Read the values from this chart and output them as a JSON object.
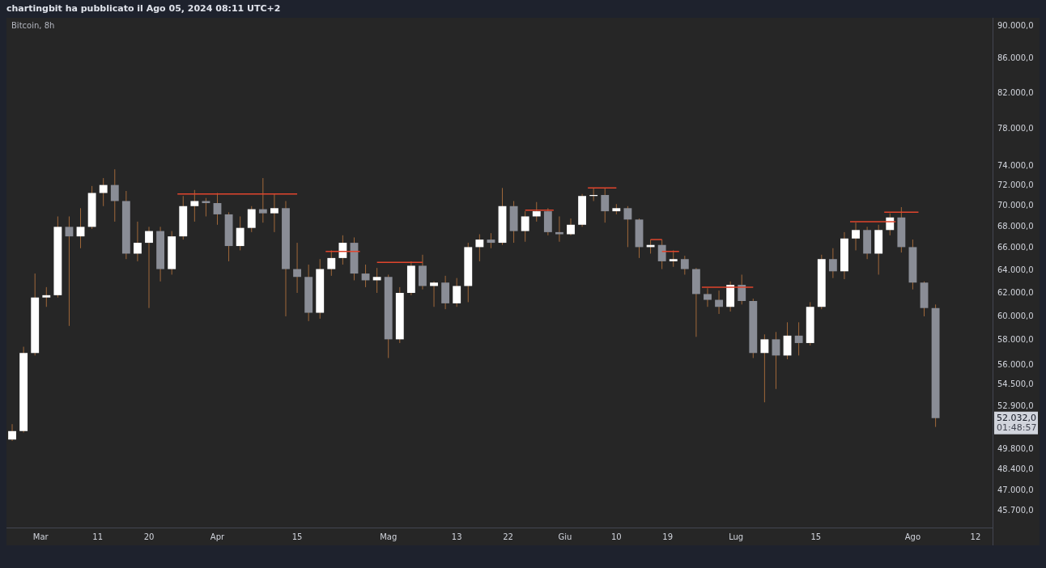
{
  "chart_data": {
    "type": "candlestick",
    "title": "chartingbit ha pubblicato il Ago 05, 2024 08:11 UTC+2",
    "subtitle": "Bitcoin, 8h",
    "series": [
      {
        "colors": [
          "#ffffff",
          "#ffffff",
          "#ffffff",
          "#ffffff",
          "#ffffff",
          "#8a8d96",
          "#ffffff",
          "#ffffff",
          "#ffffff",
          "#8a8d96",
          "#8a8d96",
          "#ffffff",
          "#ffffff",
          "#8a8d96",
          "#ffffff",
          "#ffffff",
          "#ffffff",
          "#8a8d96",
          "#8a8d96",
          "#8a8d96",
          "#ffffff",
          "#ffffff",
          "#8a8d96",
          "#ffffff",
          "#8a8d96",
          "#8a8d96",
          "#8a8d96",
          "#ffffff",
          "#ffffff",
          "#ffffff",
          "#8a8d96",
          "#8a8d96",
          "#ffffff",
          "#8a8d96",
          "#ffffff",
          "#ffffff",
          "#8a8d96",
          "#ffffff",
          "#8a8d96",
          "#ffffff",
          "#ffffff",
          "#ffffff",
          "#8a8d96",
          "#ffffff",
          "#8a8d96",
          "#ffffff",
          "#ffffff",
          "#8a8d96",
          "#8a8d96",
          "#ffffff",
          "#ffffff",
          "#ffffff",
          "#8a8d96",
          "#ffffff",
          "#8a8d96",
          "#8a8d96",
          "#ffffff",
          "#8a8d96",
          "#ffffff",
          "#8a8d96",
          "#8a8d96",
          "#8a8d96",
          "#8a8d96",
          "#ffffff",
          "#8a8d96",
          "#8a8d96",
          "#ffffff",
          "#8a8d96",
          "#ffffff",
          "#8a8d96",
          "#ffffff",
          "#ffffff",
          "#8a8d96",
          "#ffffff",
          "#ffffff",
          "#8a8d96",
          "#ffffff",
          "#ffffff",
          "#8a8d96",
          "#8a8d96",
          "#8a8d96",
          "#8a8d96"
        ],
        "x": [
          "2024-02-25",
          "2024-02-27",
          "2024-02-29",
          "2024-03-02",
          "2024-03-04",
          "2024-03-06",
          "2024-03-08",
          "2024-03-10",
          "2024-03-12",
          "2024-03-14",
          "2024-03-16",
          "2024-03-18",
          "2024-03-20",
          "2024-03-22",
          "2024-03-24",
          "2024-03-26",
          "2024-03-28",
          "2024-03-30",
          "2024-04-01",
          "2024-04-03",
          "2024-04-05",
          "2024-04-07",
          "2024-04-09",
          "2024-04-11",
          "2024-04-13",
          "2024-04-15",
          "2024-04-17",
          "2024-04-19",
          "2024-04-21",
          "2024-04-23",
          "2024-04-25",
          "2024-04-27",
          "2024-04-29",
          "2024-05-01",
          "2024-05-03",
          "2024-05-05",
          "2024-05-07",
          "2024-05-09",
          "2024-05-11",
          "2024-05-13",
          "2024-05-15",
          "2024-05-17",
          "2024-05-19",
          "2024-05-21",
          "2024-05-23",
          "2024-05-25",
          "2024-05-27",
          "2024-05-29",
          "2024-05-31",
          "2024-06-02",
          "2024-06-04",
          "2024-06-06",
          "2024-06-08",
          "2024-06-10",
          "2024-06-12",
          "2024-06-14",
          "2024-06-16",
          "2024-06-18",
          "2024-06-20",
          "2024-06-22",
          "2024-06-24",
          "2024-06-26",
          "2024-06-28",
          "2024-06-30",
          "2024-07-02",
          "2024-07-04",
          "2024-07-06",
          "2024-07-08",
          "2024-07-10",
          "2024-07-12",
          "2024-07-14",
          "2024-07-16",
          "2024-07-18",
          "2024-07-20",
          "2024-07-22",
          "2024-07-24",
          "2024-07-26",
          "2024-07-28",
          "2024-07-30",
          "2024-08-01",
          "2024-08-03",
          "2024-08-05"
        ],
        "ohlc": [
          [
            50500,
            51600,
            50400,
            51100
          ],
          [
            51100,
            57500,
            51000,
            57000
          ],
          [
            57000,
            63700,
            56800,
            61600
          ],
          [
            61600,
            62500,
            60800,
            61800
          ],
          [
            61800,
            69000,
            61600,
            68000
          ],
          [
            68000,
            69000,
            59200,
            67100
          ],
          [
            67100,
            69800,
            66000,
            68000
          ],
          [
            68000,
            72000,
            67800,
            71300
          ],
          [
            71300,
            72800,
            70000,
            72100
          ],
          [
            72100,
            73700,
            68500,
            70500
          ],
          [
            70500,
            71500,
            65000,
            65500
          ],
          [
            65500,
            68500,
            64800,
            66500
          ],
          [
            66500,
            68000,
            60700,
            67600
          ],
          [
            67600,
            68000,
            63000,
            64100
          ],
          [
            64100,
            67600,
            63600,
            67100
          ],
          [
            67100,
            71000,
            66800,
            70000
          ],
          [
            70000,
            71600,
            68500,
            70500
          ],
          [
            70500,
            70800,
            69000,
            70300
          ],
          [
            70300,
            71300,
            68200,
            69200
          ],
          [
            69200,
            69400,
            64800,
            66200
          ],
          [
            66200,
            69000,
            65800,
            67900
          ],
          [
            67900,
            70000,
            67500,
            69700
          ],
          [
            69700,
            72800,
            68400,
            69300
          ],
          [
            69300,
            71200,
            67500,
            69800
          ],
          [
            69800,
            70500,
            60000,
            64100
          ],
          [
            64100,
            66500,
            62000,
            63400
          ],
          [
            63400,
            64500,
            59600,
            60300
          ],
          [
            60300,
            65000,
            59800,
            64100
          ],
          [
            64100,
            65800,
            63500,
            65100
          ],
          [
            65100,
            67200,
            64500,
            66500
          ],
          [
            66500,
            67000,
            63100,
            63700
          ],
          [
            63700,
            64500,
            62500,
            63100
          ],
          [
            63100,
            64200,
            62000,
            63400
          ],
          [
            63400,
            63600,
            56600,
            58100
          ],
          [
            58100,
            62500,
            57800,
            62000
          ],
          [
            62000,
            64800,
            61800,
            64400
          ],
          [
            64400,
            65400,
            62300,
            62600
          ],
          [
            62600,
            63000,
            60800,
            62900
          ],
          [
            62900,
            63500,
            60600,
            61100
          ],
          [
            61100,
            63300,
            60800,
            62600
          ],
          [
            62600,
            66500,
            61200,
            66100
          ],
          [
            66100,
            67300,
            64800,
            66800
          ],
          [
            66800,
            67400,
            66000,
            66500
          ],
          [
            66500,
            71800,
            66300,
            70000
          ],
          [
            70000,
            70500,
            66500,
            67600
          ],
          [
            67600,
            69500,
            66600,
            69000
          ],
          [
            69000,
            70400,
            68500,
            69500
          ],
          [
            69500,
            69800,
            67200,
            67500
          ],
          [
            67500,
            69000,
            66600,
            67300
          ],
          [
            67300,
            68800,
            67200,
            68200
          ],
          [
            68200,
            71200,
            68000,
            71000
          ],
          [
            71000,
            71800,
            70500,
            71100
          ],
          [
            71100,
            71800,
            68400,
            69500
          ],
          [
            69500,
            70200,
            69200,
            69800
          ],
          [
            69800,
            70000,
            66100,
            68700
          ],
          [
            68700,
            68800,
            65100,
            66100
          ],
          [
            66100,
            66800,
            65500,
            66300
          ],
          [
            66300,
            66800,
            64100,
            64800
          ],
          [
            64800,
            65800,
            64300,
            65000
          ],
          [
            65000,
            65300,
            63600,
            64100
          ],
          [
            64100,
            64200,
            58300,
            61900
          ],
          [
            61900,
            62400,
            60800,
            61400
          ],
          [
            61400,
            62200,
            60200,
            60800
          ],
          [
            60800,
            63000,
            60400,
            62700
          ],
          [
            62700,
            63600,
            61000,
            61300
          ],
          [
            61300,
            61500,
            56600,
            57000
          ],
          [
            57000,
            58500,
            53200,
            58100
          ],
          [
            58100,
            58700,
            54200,
            56800
          ],
          [
            56800,
            59500,
            56500,
            58400
          ],
          [
            58400,
            59500,
            56800,
            57800
          ],
          [
            57800,
            61200,
            57600,
            60800
          ],
          [
            60800,
            65400,
            60600,
            65000
          ],
          [
            65000,
            66000,
            63300,
            63900
          ],
          [
            63900,
            67500,
            63200,
            66900
          ],
          [
            66900,
            68400,
            65800,
            67700
          ],
          [
            67700,
            68000,
            65000,
            65500
          ],
          [
            65500,
            68200,
            63600,
            67700
          ],
          [
            67700,
            69300,
            67200,
            68900
          ],
          [
            68900,
            69900,
            65600,
            66100
          ],
          [
            66100,
            66800,
            62300,
            62900
          ],
          [
            62900,
            63000,
            60000,
            60700
          ],
          [
            60700,
            61000,
            51400,
            52032
          ]
        ]
      },
      {
        "type": "line",
        "color": "#e0452d",
        "x": [
          "2024-03-25",
          "2024-04-15"
        ],
        "values": [
          71200,
          71200
        ]
      },
      {
        "type": "line",
        "color": "#e0452d",
        "x": [
          "2024-04-20",
          "2024-04-26"
        ],
        "values": [
          65700,
          65700
        ]
      },
      {
        "type": "line",
        "color": "#e0452d",
        "x": [
          "2024-04-29",
          "2024-05-07"
        ],
        "values": [
          64700,
          64700
        ]
      },
      {
        "type": "line",
        "color": "#e0452d",
        "x": [
          "2024-05-25",
          "2024-05-30"
        ],
        "values": [
          69600,
          69600
        ]
      },
      {
        "type": "line",
        "color": "#e0452d",
        "x": [
          "2024-06-05",
          "2024-06-10"
        ],
        "values": [
          71800,
          71800
        ]
      },
      {
        "type": "line",
        "color": "#e0452d",
        "x": [
          "2024-06-16",
          "2024-06-18"
        ],
        "values": [
          66800,
          66800
        ]
      },
      {
        "type": "line",
        "color": "#e0452d",
        "x": [
          "2024-06-18",
          "2024-06-21"
        ],
        "values": [
          65700,
          65700
        ]
      },
      {
        "type": "line",
        "color": "#e0452d",
        "x": [
          "2024-06-25",
          "2024-07-04"
        ],
        "values": [
          62500,
          62500
        ]
      },
      {
        "type": "line",
        "color": "#e0452d",
        "x": [
          "2024-07-21",
          "2024-07-29"
        ],
        "values": [
          68500,
          68500
        ]
      },
      {
        "type": "line",
        "color": "#e0452d",
        "x": [
          "2024-07-27",
          "2024-08-02"
        ],
        "values": [
          69400,
          69400
        ]
      }
    ],
    "xlim": [
      "2024-02-24",
      "2024-08-15"
    ],
    "xticks": [
      {
        "value": "2024-03-01",
        "label": "Mar"
      },
      {
        "value": "2024-03-11",
        "label": "11"
      },
      {
        "value": "2024-03-20",
        "label": "20"
      },
      {
        "value": "2024-04-01",
        "label": "Apr"
      },
      {
        "value": "2024-04-15",
        "label": "15"
      },
      {
        "value": "2024-05-01",
        "label": "Mag"
      },
      {
        "value": "2024-05-13",
        "label": "13"
      },
      {
        "value": "2024-05-22",
        "label": "22"
      },
      {
        "value": "2024-06-01",
        "label": "Giu"
      },
      {
        "value": "2024-06-10",
        "label": "10"
      },
      {
        "value": "2024-06-19",
        "label": "19"
      },
      {
        "value": "2024-07-01",
        "label": "Lug"
      },
      {
        "value": "2024-07-15",
        "label": "15"
      },
      {
        "value": "2024-08-01",
        "label": "Ago"
      },
      {
        "value": "2024-08-12",
        "label": "12"
      }
    ],
    "ylim": [
      44650,
      91100
    ],
    "yticks": [
      {
        "value": 45700,
        "label": "45.700,0"
      },
      {
        "value": 47000,
        "label": "47.000,0"
      },
      {
        "value": 48400,
        "label": "48.400,0"
      },
      {
        "value": 49800,
        "label": "49.800,0"
      },
      {
        "value": 52900,
        "label": "52.900,0"
      },
      {
        "value": 54500,
        "label": "54.500,0"
      },
      {
        "value": 56000,
        "label": "56.000,0"
      },
      {
        "value": 58000,
        "label": "58.000,0"
      },
      {
        "value": 60000,
        "label": "60.000,0"
      },
      {
        "value": 62000,
        "label": "62.000,0"
      },
      {
        "value": 64000,
        "label": "64.000,0"
      },
      {
        "value": 66000,
        "label": "66.000,0"
      },
      {
        "value": 68000,
        "label": "68.000,0"
      },
      {
        "value": 70000,
        "label": "70.000,0"
      },
      {
        "value": 72000,
        "label": "72.000,0"
      },
      {
        "value": 74000,
        "label": "74.000,0"
      },
      {
        "value": 78000,
        "label": "78.000,0"
      },
      {
        "value": 82000,
        "label": "82.000,0"
      },
      {
        "value": 86000,
        "label": "86.000,0"
      },
      {
        "value": 90000,
        "label": "90.000,0"
      }
    ],
    "log": "y",
    "annotations": [
      "52.032,0",
      "01:48:57"
    ]
  }
}
